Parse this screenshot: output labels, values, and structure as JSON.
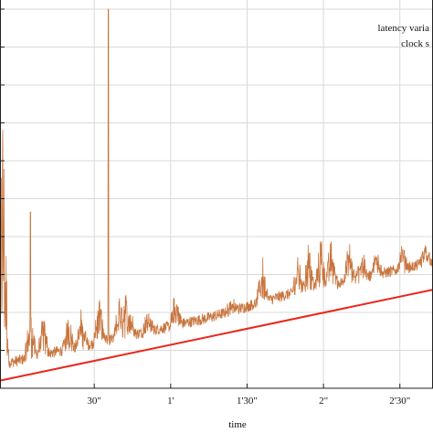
{
  "chart_data": {
    "type": "line",
    "xlabel": "time",
    "ylabel": "",
    "title": "",
    "xlim": [
      -22,
      148
    ],
    "ylim": [
      0,
      1
    ],
    "grid": true,
    "legend_position": "top-right",
    "x_ticks": [
      {
        "value": 15,
        "label": "30\""
      },
      {
        "value": 45,
        "label": "1'"
      },
      {
        "value": 75,
        "label": "1'30\""
      },
      {
        "value": 105,
        "label": "2\""
      },
      {
        "value": 135,
        "label": "2'30\""
      }
    ],
    "legend": [
      "latency varia",
      "clock s"
    ],
    "series": [
      {
        "name": "latency varia",
        "color": "#c8743c",
        "baseline_points": [
          [
            -22,
            0.055
          ],
          [
            -10,
            0.075
          ],
          [
            0,
            0.09
          ],
          [
            10,
            0.105
          ],
          [
            20,
            0.12
          ],
          [
            30,
            0.135
          ],
          [
            40,
            0.15
          ],
          [
            50,
            0.165
          ],
          [
            60,
            0.18
          ],
          [
            70,
            0.2
          ],
          [
            80,
            0.22
          ],
          [
            90,
            0.24
          ],
          [
            100,
            0.255
          ],
          [
            110,
            0.27
          ],
          [
            120,
            0.285
          ],
          [
            130,
            0.3
          ],
          [
            140,
            0.315
          ],
          [
            148,
            0.33
          ]
        ],
        "spikes": [
          [
            -21,
            0.8
          ],
          [
            -10,
            0.22
          ],
          [
            -5,
            0.19
          ],
          [
            5,
            0.2
          ],
          [
            10,
            0.2
          ],
          [
            17,
            0.25
          ],
          [
            25,
            0.25
          ],
          [
            27,
            0.27
          ],
          [
            29,
            0.22
          ],
          [
            36,
            0.2
          ],
          [
            47,
            0.25
          ],
          [
            69,
            0.23
          ],
          [
            79,
            0.22
          ],
          [
            81,
            0.35
          ],
          [
            95,
            0.35
          ],
          [
            99,
            0.38
          ],
          [
            104,
            0.41
          ],
          [
            108,
            0.4
          ],
          [
            115,
            0.38
          ],
          [
            120,
            0.36
          ],
          [
            126,
            0.37
          ],
          [
            136,
            0.37
          ],
          [
            145,
            0.38
          ]
        ],
        "peak": [
          -10,
          0.465
        ],
        "peak2": [
          20.5,
          1.0
        ]
      },
      {
        "name": "clock s",
        "color": "#e8271c",
        "points": [
          [
            -22,
            0.02
          ],
          [
            148,
            0.26
          ]
        ]
      }
    ]
  }
}
